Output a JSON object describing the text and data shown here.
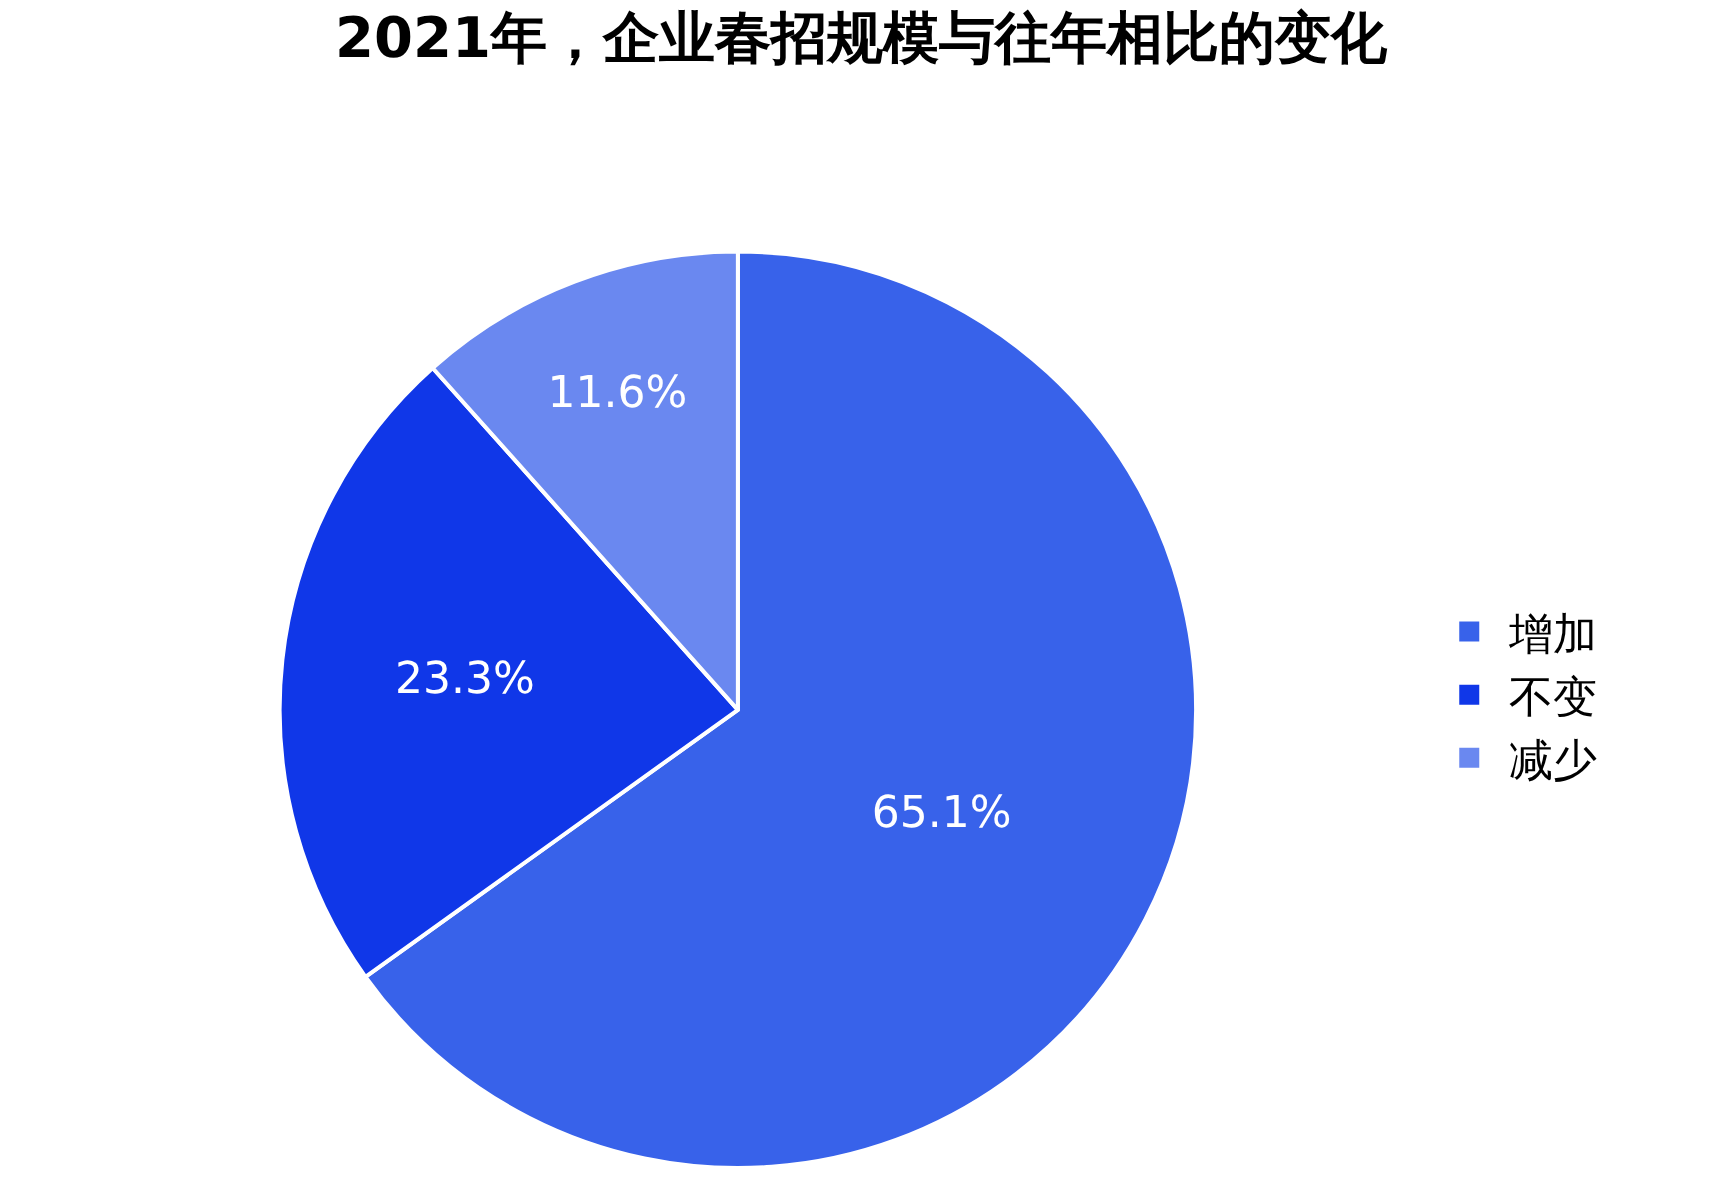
{
  "chart_data": {
    "type": "pie",
    "title": "2021年，企业春招规模与往年相比的变化",
    "categories": [
      "增加",
      "不变",
      "减少"
    ],
    "values": [
      65.1,
      23.3,
      11.6
    ],
    "value_labels": [
      "65.1%",
      "23.3%",
      "11.6%"
    ],
    "colors": [
      "#3862ea",
      "#1037e8",
      "#6a88f0"
    ],
    "legend": "right"
  }
}
